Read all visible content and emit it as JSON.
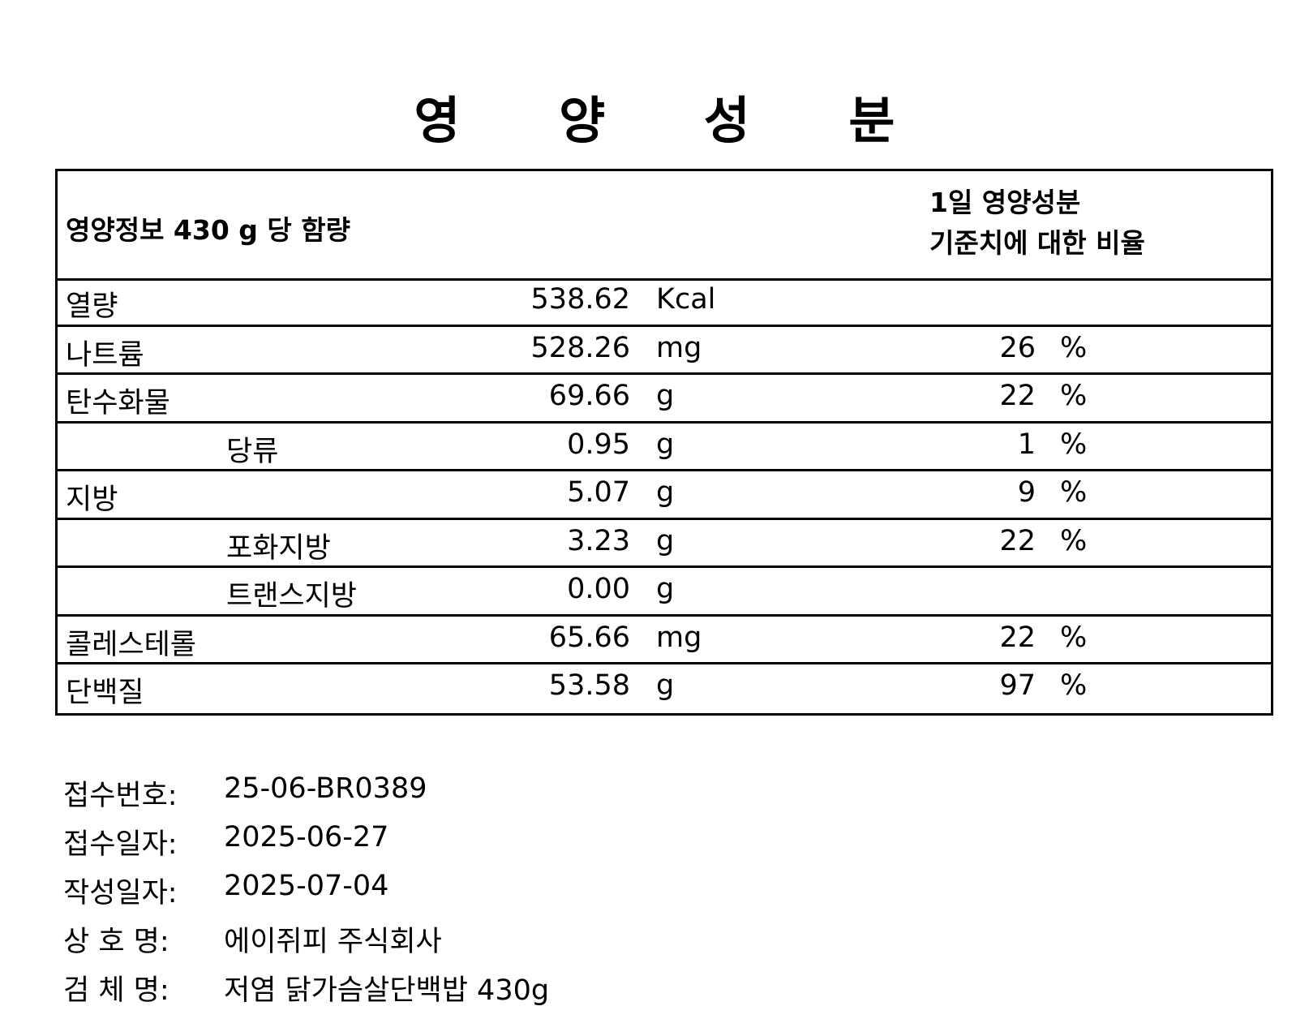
{
  "title": "영 양 성 분",
  "table": {
    "header_left": "영양정보 430 g 당 함량",
    "header_right_line1": "1일 영양성분",
    "header_right_line2": "기준치에 대한 비율",
    "rows": [
      {
        "name": "열량",
        "indent": false,
        "value": "538.62",
        "unit": "Kcal",
        "percent": "",
        "percent_sign": ""
      },
      {
        "name": "나트륨",
        "indent": false,
        "value": "528.26",
        "unit": "mg",
        "percent": "26",
        "percent_sign": "%"
      },
      {
        "name": "탄수화물",
        "indent": false,
        "value": "69.66",
        "unit": "g",
        "percent": "22",
        "percent_sign": "%"
      },
      {
        "name": "당류",
        "indent": true,
        "value": "0.95",
        "unit": "g",
        "percent": "1",
        "percent_sign": "%"
      },
      {
        "name": "지방",
        "indent": false,
        "value": "5.07",
        "unit": "g",
        "percent": "9",
        "percent_sign": "%"
      },
      {
        "name": "포화지방",
        "indent": true,
        "value": "3.23",
        "unit": "g",
        "percent": "22",
        "percent_sign": "%"
      },
      {
        "name": "트랜스지방",
        "indent": true,
        "value": "0.00",
        "unit": "g",
        "percent": "",
        "percent_sign": ""
      },
      {
        "name": "콜레스테롤",
        "indent": false,
        "value": "65.66",
        "unit": "mg",
        "percent": "22",
        "percent_sign": "%"
      },
      {
        "name": "단백질",
        "indent": false,
        "value": "53.58",
        "unit": "g",
        "percent": "97",
        "percent_sign": "%"
      }
    ]
  },
  "footer": [
    {
      "label": "접수번호:",
      "value": "25-06-BR0389"
    },
    {
      "label": "접수일자:",
      "value": "2025-06-27"
    },
    {
      "label": "작성일자:",
      "value": "2025-07-04"
    },
    {
      "label": "상 호 명:",
      "value": "에이쥐피 주식회사"
    },
    {
      "label": "검 체 명:",
      "value": "저염 닭가슴살단백밥 430g"
    }
  ]
}
